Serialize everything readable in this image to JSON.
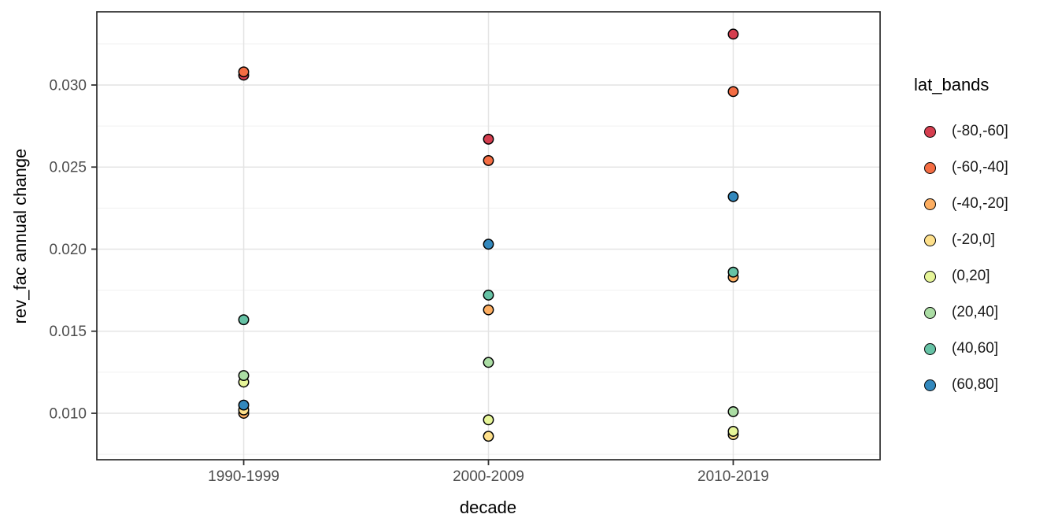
{
  "chart_data": {
    "type": "scatter",
    "title": "",
    "xlabel": "decade",
    "ylabel": "rev_fac annual change",
    "legend_title": "lat_bands",
    "legend_position": "right",
    "grid": true,
    "background": "#FFFFFF",
    "categories": [
      "1990-1999",
      "2000-2009",
      "2010-2019"
    ],
    "ylim": [
      0.00717,
      0.03446
    ],
    "yticks": [
      0.01,
      0.015,
      0.02,
      0.025,
      0.03
    ],
    "ytick_labels": [
      "0.010",
      "0.015",
      "0.020",
      "0.025",
      "0.030"
    ],
    "yminor": [
      0.0075,
      0.0125,
      0.0175,
      0.0225,
      0.0275,
      0.0325
    ],
    "series": [
      {
        "name": "(-80,-60]",
        "color": "#D53E4F",
        "values": [
          0.0306,
          0.0267,
          0.0331
        ]
      },
      {
        "name": "(-60,-40]",
        "color": "#F46D43",
        "values": [
          0.0308,
          0.0254,
          0.0296
        ]
      },
      {
        "name": "(-40,-20]",
        "color": "#FDAE61",
        "values": [
          0.01,
          0.0163,
          0.0183
        ]
      },
      {
        "name": "(-20,0]",
        "color": "#FEE08B",
        "values": [
          0.0102,
          0.0086,
          0.0087
        ]
      },
      {
        "name": "(0,20]",
        "color": "#E6F598",
        "values": [
          0.0119,
          0.0096,
          0.0089
        ]
      },
      {
        "name": "(20,40]",
        "color": "#ABDDA4",
        "values": [
          0.0123,
          0.0131,
          0.0101
        ]
      },
      {
        "name": "(40,60]",
        "color": "#66C2A5",
        "values": [
          0.0157,
          0.0172,
          0.0186
        ]
      },
      {
        "name": "(60,80]",
        "color": "#3288BD",
        "values": [
          0.0105,
          0.0203,
          0.0232
        ]
      }
    ],
    "colors": {
      "panel_border": "#2b2b2b",
      "grid_major": "#E4E4E4",
      "grid_minor": "#F0F0F0",
      "tick_mark": "#333333",
      "tick_text": "#4D4D4D",
      "title_text": "#000000",
      "point_stroke": "#000000"
    }
  }
}
